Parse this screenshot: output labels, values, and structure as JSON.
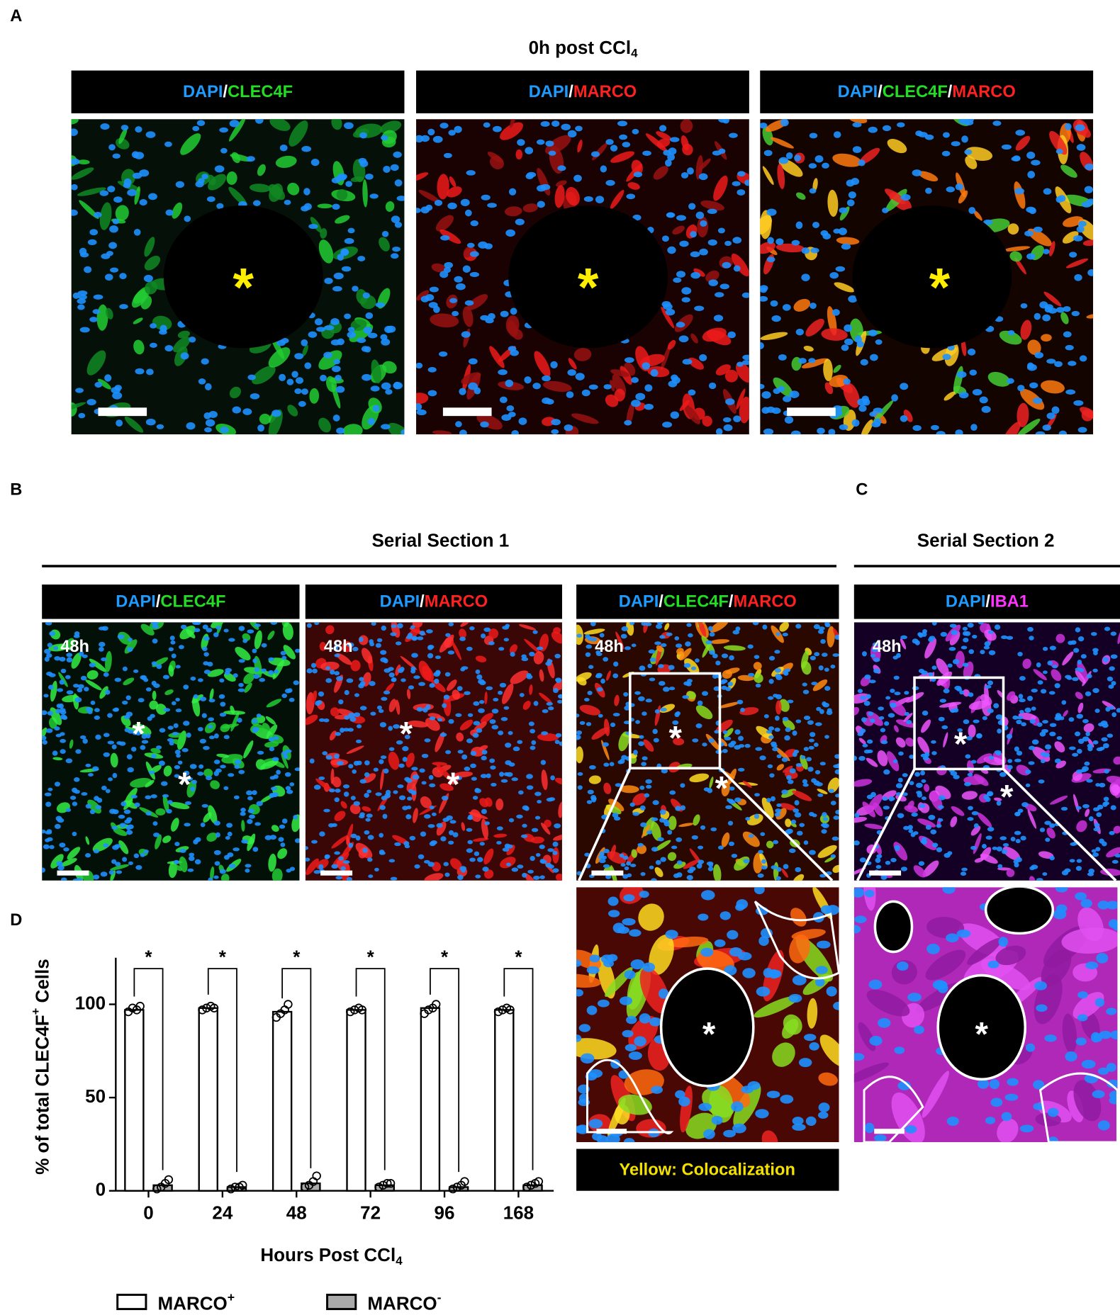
{
  "figure": {
    "panel_labels": [
      "A",
      "B",
      "C",
      "D"
    ],
    "A": {
      "title": {
        "text": "0h post CCl",
        "sub": "4"
      },
      "headers": [
        [
          {
            "text": "DAPI",
            "color": "#1e9bff"
          },
          {
            "text": "/",
            "color": "#ffffff"
          },
          {
            "text": "CLEC4F",
            "color": "#22dd22"
          }
        ],
        [
          {
            "text": "DAPI",
            "color": "#1e9bff"
          },
          {
            "text": "/",
            "color": "#ffffff"
          },
          {
            "text": "MARCO",
            "color": "#ff2020"
          }
        ],
        [
          {
            "text": "DAPI",
            "color": "#1e9bff"
          },
          {
            "text": "/",
            "color": "#ffffff"
          },
          {
            "text": "CLEC4F",
            "color": "#22dd22"
          },
          {
            "text": "/",
            "color": "#ffffff"
          },
          {
            "text": "MARCO",
            "color": "#ff2020"
          }
        ]
      ],
      "marker": "*"
    },
    "B": {
      "section_title": "Serial Section 1",
      "headers": [
        [
          {
            "text": "DAPI",
            "color": "#1e9bff"
          },
          {
            "text": "/",
            "color": "#ffffff"
          },
          {
            "text": "CLEC4F",
            "color": "#22dd22"
          }
        ],
        [
          {
            "text": "DAPI",
            "color": "#1e9bff"
          },
          {
            "text": "/",
            "color": "#ffffff"
          },
          {
            "text": "MARCO",
            "color": "#ff2020"
          }
        ],
        [
          {
            "text": "DAPI",
            "color": "#1e9bff"
          },
          {
            "text": "/",
            "color": "#ffffff"
          },
          {
            "text": "CLEC4F",
            "color": "#22dd22"
          },
          {
            "text": "/",
            "color": "#ffffff"
          },
          {
            "text": "MARCO",
            "color": "#ff2020"
          }
        ]
      ],
      "time": "48h",
      "marker": "*",
      "caption": "Yellow: Colocalization"
    },
    "C": {
      "section_title": "Serial Section 2",
      "headers": [
        [
          {
            "text": "DAPI",
            "color": "#1e9bff"
          },
          {
            "text": "/",
            "color": "#ffffff"
          },
          {
            "text": "IBA1",
            "color": "#ff33ff"
          }
        ]
      ],
      "time": "48h",
      "marker": "*"
    }
  },
  "chart_data": {
    "type": "bar",
    "x_label": {
      "text": "Hours Post CCl",
      "sub": "4"
    },
    "y_label": {
      "text": "% of total CLEC4F",
      "sup": "+",
      "after": " Cells"
    },
    "categories": [
      "0",
      "24",
      "48",
      "72",
      "96",
      "168"
    ],
    "series": [
      {
        "name": "MARCO",
        "name_sup": "+",
        "color": "#ffffff",
        "values": [
          97,
          98,
          96,
          97,
          98,
          97
        ],
        "points": [
          [
            96,
            98,
            97,
            99
          ],
          [
            97,
            98,
            99,
            98
          ],
          [
            93,
            95,
            97,
            100
          ],
          [
            96,
            97,
            98,
            97
          ],
          [
            95,
            97,
            98,
            100
          ],
          [
            96,
            97,
            98,
            97
          ]
        ]
      },
      {
        "name": "MARCO",
        "name_sup": "-",
        "color": "#aaaaaa",
        "values": [
          3,
          2,
          4,
          3,
          2,
          3
        ],
        "points": [
          [
            1,
            2,
            4,
            6
          ],
          [
            1,
            2,
            2,
            3
          ],
          [
            2,
            3,
            5,
            8
          ],
          [
            2,
            3,
            4,
            4
          ],
          [
            1,
            2,
            3,
            5
          ],
          [
            2,
            3,
            4,
            5
          ]
        ]
      }
    ],
    "significance": [
      "*",
      "*",
      "*",
      "*",
      "*",
      "*"
    ],
    "ylim": [
      0,
      125
    ],
    "yticks": [
      0,
      50,
      100
    ]
  }
}
